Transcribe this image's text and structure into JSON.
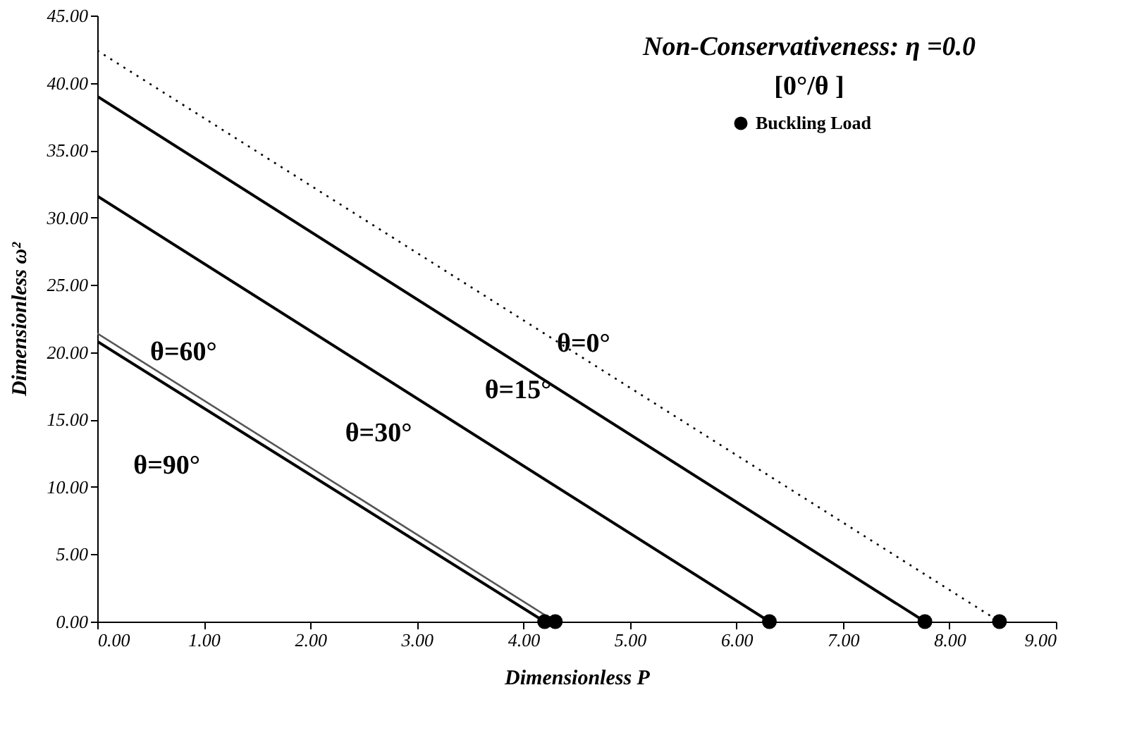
{
  "chart_data": {
    "type": "line",
    "annotations": [
      "Non-Conservativeness: η =0.0",
      "[0°/θ ]"
    ],
    "xlabel": "Dimensionless P",
    "ylabel": "Dimensionless ω²",
    "xlim": [
      0,
      9
    ],
    "ylim": [
      0,
      45
    ],
    "xticks": [
      {
        "value": 0,
        "label": "0.00"
      },
      {
        "value": 1,
        "label": "1.00"
      },
      {
        "value": 2,
        "label": "2.00"
      },
      {
        "value": 3,
        "label": "3.00"
      },
      {
        "value": 4,
        "label": "4.00"
      },
      {
        "value": 5,
        "label": "5.00"
      },
      {
        "value": 6,
        "label": "6.00"
      },
      {
        "value": 7,
        "label": "7.00"
      },
      {
        "value": 8,
        "label": "8.00"
      },
      {
        "value": 9,
        "label": "9.00"
      }
    ],
    "yticks": [
      {
        "value": 0,
        "label": "0.00"
      },
      {
        "value": 5,
        "label": "5.00"
      },
      {
        "value": 10,
        "label": "10.00"
      },
      {
        "value": 15,
        "label": "15.00"
      },
      {
        "value": 20,
        "label": "20.00"
      },
      {
        "value": 25,
        "label": "25.00"
      },
      {
        "value": 30,
        "label": "30.00"
      },
      {
        "value": 35,
        "label": "35.00"
      },
      {
        "value": 40,
        "label": "40.00"
      },
      {
        "value": 45,
        "label": "45.00"
      }
    ],
    "grid": false,
    "legend": "top right",
    "series": [
      {
        "name": "θ=0°",
        "color": "#000000",
        "line_style": "dotted",
        "x": [
          0,
          8.47
        ],
        "values": [
          42.4,
          0
        ]
      },
      {
        "name": "θ=15°",
        "color": "#000000",
        "line_style": "solid",
        "x": [
          0,
          7.77
        ],
        "values": [
          39.0,
          0
        ]
      },
      {
        "name": "θ=30°",
        "color": "#000000",
        "line_style": "solid",
        "x": [
          0,
          6.31
        ],
        "values": [
          31.6,
          0
        ]
      },
      {
        "name": "θ=60°",
        "color": "#555555",
        "line_style": "solid",
        "x": [
          0,
          4.3
        ],
        "values": [
          21.4,
          0
        ]
      },
      {
        "name": "θ=90°",
        "color": "#000000",
        "line_style": "solid",
        "x": [
          0,
          4.2
        ],
        "values": [
          20.8,
          0
        ]
      },
      {
        "name": "Buckling Load",
        "type": "scatter",
        "marker": "circle",
        "color": "#000000",
        "x": [
          8.47,
          7.77,
          6.31,
          4.3,
          4.2
        ],
        "values": [
          0,
          0,
          0,
          0,
          0
        ]
      }
    ]
  }
}
